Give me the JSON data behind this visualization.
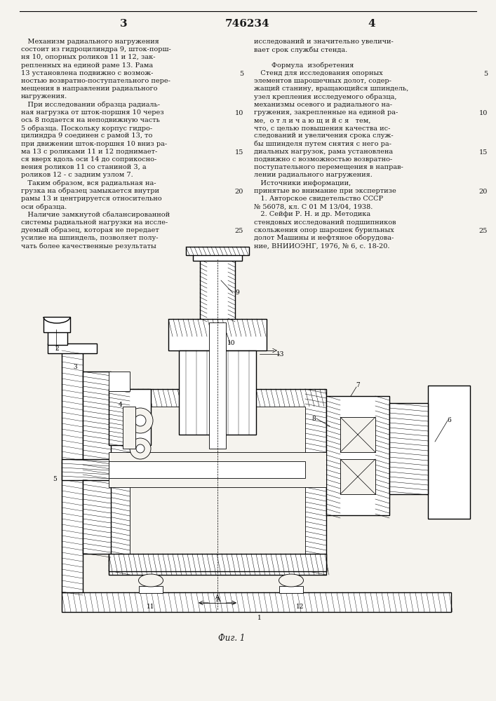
{
  "page_width": 7.07,
  "page_height": 10.0,
  "bg_color": "#f5f3ee",
  "text_color": "#1a1a1a",
  "header_page_left": "3",
  "header_patent_number": "746234",
  "header_page_right": "4",
  "left_column_lines": [
    "   Механизм радиального нагружения",
    "состоит из гидроцилиндра 9, шток-порш-",
    "ня 10, опорных роликов 11 и 12, зак-",
    "репленных на единой раме 13. Рама",
    "13 установлена подвижно с возмож-",
    "ностью возвратно-поступательного пере-",
    "мещения в направлении радиального",
    "нагружения.",
    "   При исследовании образца радиаль-",
    "ная нагрузка от шток-поршня 10 через",
    "ось 8 подается на неподвижную часть",
    "5 образца. Поскольку корпус гидро-",
    "цилиндра 9 соединен с рамой 13, то",
    "при движении шток-поршня 10 вниз ра-",
    "ма 13 с роликами 11 и 12 поднимает-",
    "ся вверх вдоль оси 14 до соприкосно-",
    "вения роликов 11 со станиной 3, а",
    "роликов 12 - с задним узлом 7.",
    "   Таким образом, вся радиальная на-",
    "грузка на образец замыкается внутри",
    "рамы 13 и центрируется относительно",
    "оси образца.",
    "   Наличие замкнутой сбалансированной",
    "системы радиальной нагрузки на иссле-",
    "дуемый образец, которая не передает",
    "усилие на шпиндель, позволяет полу-",
    "чать более качественные результаты"
  ],
  "right_column_lines": [
    "исследований и значительно увеличи-",
    "вает срок службы стенда.",
    "",
    "        Формула  изобретения",
    "   Стенд для исследования опорных",
    "элементов шарошечных долот, содер-",
    "жащий станину, вращающийся шпиндель,",
    "узел крепления исследуемого образца,",
    "механизмы осевого и радиального на-",
    "гружения, закрепленные на единой ра-",
    "ме,  о т л и ч а ю щ и й с я   тем,",
    "что, с целью повышения качества ис-",
    "следований и увеличения срока служ-",
    "бы шпинделя путем снятия с него ра-",
    "диальных нагрузок, рама установлена",
    "подвижно с возможностью возвратно-",
    "поступательного перемещения в направ-",
    "лении радиального нагружения.",
    "   Источники информации,",
    "принятые во внимание при экспертизе",
    "   1. Авторское свидетельство СССР",
    "№ 56078, кл. С 01 М 13/04, 1938.",
    "   2. Сейфи Р. Н. и др. Методика",
    "стендовых исследований подшипников",
    "скольжения опор шарошек бурильных",
    "долот Машины и нефтяное оборудова-",
    "ние, ВНИИОЭНГ, 1976, № 6, с. 18-20."
  ],
  "line_numbers": [
    [
      5,
      4
    ],
    [
      10,
      9
    ],
    [
      15,
      14
    ],
    [
      20,
      19
    ],
    [
      25,
      24
    ]
  ],
  "figure_caption": "Фиг. 1"
}
